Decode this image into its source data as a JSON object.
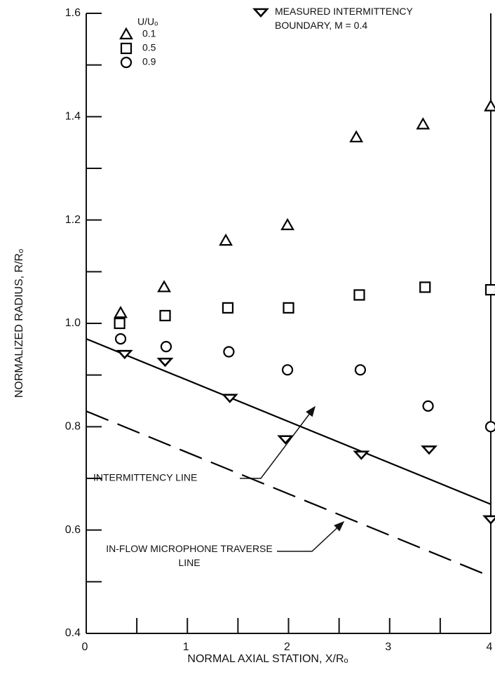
{
  "chart_data": {
    "type": "scatter",
    "xlabel": "NORMAL AXIAL STATION, X/Rₒ",
    "ylabel": "NORMALIZED RADIUS, R/Rₒ",
    "legend_title": "U/Uₒ",
    "xlim": [
      0,
      4
    ],
    "ylim": [
      0.4,
      1.6
    ],
    "xticks": [
      0,
      1,
      2,
      3,
      4
    ],
    "yticks": [
      {
        "value": 0.4,
        "label": "0.4"
      },
      {
        "value": 0.6,
        "label": "0.6"
      },
      {
        "value": 0.8,
        "label": "0.8"
      },
      {
        "value": 1.0,
        "label": "1.0"
      },
      {
        "value": 1.2,
        "label": "1.2"
      },
      {
        "value": 1.4,
        "label": "1.4"
      },
      {
        "value": 1.6,
        "label": "1.6"
      }
    ],
    "x_minor_ticks": [
      0.5,
      1.5,
      2.5,
      3.5
    ],
    "y_minor_ticks": [
      0.5,
      0.7,
      0.9,
      1.1,
      1.3,
      1.5
    ],
    "series": [
      {
        "name": "0.1",
        "marker": "triangle",
        "color": "#000000",
        "x": [
          0.34,
          0.77,
          1.38,
          1.99,
          2.67,
          3.33,
          4.0
        ],
        "values": [
          1.02,
          1.07,
          1.16,
          1.19,
          1.36,
          1.385,
          1.42
        ]
      },
      {
        "name": "0.5",
        "marker": "square",
        "color": "#000000",
        "x": [
          0.33,
          0.78,
          1.4,
          2.0,
          2.7,
          3.35,
          4.0
        ],
        "values": [
          1.0,
          1.015,
          1.03,
          1.03,
          1.055,
          1.07,
          1.065
        ]
      },
      {
        "name": "0.9",
        "marker": "circle",
        "color": "#000000",
        "x": [
          0.34,
          0.79,
          1.41,
          1.99,
          2.71,
          3.38,
          4.0
        ],
        "values": [
          0.97,
          0.955,
          0.945,
          0.91,
          0.91,
          0.84,
          0.8
        ]
      },
      {
        "name": "MEASURED INTERMITTENCY BOUNDARY, M = 0.4",
        "marker": "down-triangle",
        "color": "#000000",
        "x": [
          0.38,
          0.78,
          1.42,
          1.97,
          2.72,
          3.39,
          4.0
        ],
        "values": [
          0.94,
          0.925,
          0.855,
          0.775,
          0.745,
          0.755,
          0.62
        ]
      }
    ],
    "lines": [
      {
        "x": [
          0,
          4
        ],
        "values": [
          0.97,
          0.65
        ],
        "dashed": false,
        "color": "#000000"
      },
      {
        "x": [
          0,
          4
        ],
        "values": [
          0.83,
          0.51
        ],
        "dashed": true,
        "color": "#000000"
      }
    ],
    "annotations": [
      "INTERMITTENCY LINE",
      "IN-FLOW MICROPHONE TRAVERSE LINE"
    ]
  }
}
